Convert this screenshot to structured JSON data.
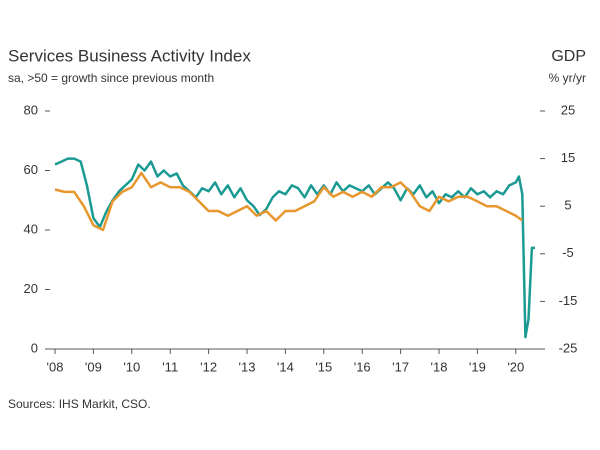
{
  "chart_data": {
    "type": "line",
    "title": "Services Business Activity Index",
    "subtitle": "sa, >50 = growth since previous month",
    "y2label": "% yr/yr",
    "source": "Sources: IHS Markit, CSO.",
    "xlim": [
      2007.87,
      2020.63
    ],
    "xticks": [
      {
        "value": 2008,
        "label": "'08"
      },
      {
        "value": 2009,
        "label": "'09"
      },
      {
        "value": 2010,
        "label": "'10"
      },
      {
        "value": 2011,
        "label": "'11"
      },
      {
        "value": 2012,
        "label": "'12"
      },
      {
        "value": 2013,
        "label": "'13"
      },
      {
        "value": 2014,
        "label": "'14"
      },
      {
        "value": 2015,
        "label": "'15"
      },
      {
        "value": 2016,
        "label": "'16"
      },
      {
        "value": 2017,
        "label": "'17"
      },
      {
        "value": 2018,
        "label": "'18"
      },
      {
        "value": 2019,
        "label": "'19"
      },
      {
        "value": 2020,
        "label": "'20"
      }
    ],
    "ylim": [
      0,
      80
    ],
    "yticks": [
      0,
      20,
      40,
      60,
      80
    ],
    "y2lim": [
      -25,
      25
    ],
    "y2ticks": [
      -25,
      -15,
      -5,
      5,
      15,
      25
    ],
    "series": [
      {
        "color": "#1a9a93",
        "x": [
          2008.0,
          2008.17,
          2008.33,
          2008.5,
          2008.67,
          2008.83,
          2009.0,
          2009.17,
          2009.33,
          2009.5,
          2009.67,
          2009.83,
          2010.0,
          2010.17,
          2010.33,
          2010.5,
          2010.67,
          2010.83,
          2011.0,
          2011.17,
          2011.33,
          2011.5,
          2011.67,
          2011.83,
          2012.0,
          2012.17,
          2012.33,
          2012.5,
          2012.67,
          2012.83,
          2013.0,
          2013.17,
          2013.33,
          2013.5,
          2013.67,
          2013.83,
          2014.0,
          2014.17,
          2014.33,
          2014.5,
          2014.67,
          2014.83,
          2015.0,
          2015.17,
          2015.33,
          2015.5,
          2015.67,
          2015.83,
          2016.0,
          2016.17,
          2016.33,
          2016.5,
          2016.67,
          2016.83,
          2017.0,
          2017.17,
          2017.33,
          2017.5,
          2017.67,
          2017.83,
          2018.0,
          2018.17,
          2018.33,
          2018.5,
          2018.67,
          2018.83,
          2019.0,
          2019.17,
          2019.33,
          2019.5,
          2019.67,
          2019.83,
          2020.0,
          2020.08,
          2020.17,
          2020.25,
          2020.33,
          2020.42,
          2020.5
        ],
        "values": [
          62,
          63,
          64,
          64,
          63,
          55,
          44,
          41,
          46,
          50,
          53,
          55,
          57,
          62,
          60,
          63,
          58,
          60,
          58,
          59,
          55,
          53,
          51,
          54,
          53,
          56,
          52,
          55,
          51,
          54,
          50,
          48,
          45,
          47,
          51,
          53,
          52,
          55,
          54,
          51,
          55,
          52,
          55,
          52,
          56,
          53,
          55,
          54,
          53,
          55,
          52,
          54,
          56,
          54,
          50,
          54,
          52,
          55,
          51,
          53,
          49,
          52,
          51,
          53,
          51,
          54,
          52,
          53,
          51,
          53,
          52,
          55,
          56,
          58,
          52,
          4,
          10,
          34,
          34
        ]
      },
      {
        "name": "GDP",
        "color": "#e8962e",
        "axis": "y2",
        "x": [
          2008.0,
          2008.25,
          2008.5,
          2008.75,
          2009.0,
          2009.25,
          2009.5,
          2009.75,
          2010.0,
          2010.25,
          2010.5,
          2010.75,
          2011.0,
          2011.25,
          2011.5,
          2011.75,
          2012.0,
          2012.25,
          2012.5,
          2012.75,
          2013.0,
          2013.25,
          2013.5,
          2013.75,
          2014.0,
          2014.25,
          2014.5,
          2014.75,
          2015.0,
          2015.25,
          2015.5,
          2015.75,
          2016.0,
          2016.25,
          2016.5,
          2016.75,
          2017.0,
          2017.25,
          2017.5,
          2017.75,
          2018.0,
          2018.25,
          2018.5,
          2018.75,
          2019.0,
          2019.25,
          2019.5,
          2019.75,
          2020.0,
          2020.17
        ],
        "values": [
          8.5,
          8,
          8,
          5,
          1,
          0,
          6,
          8,
          9,
          12,
          9,
          10,
          9,
          9,
          8,
          6,
          4,
          4,
          3,
          4,
          5,
          3,
          4,
          2,
          4,
          4,
          5,
          6,
          9,
          7,
          8,
          7,
          8,
          7,
          9,
          9,
          10,
          8,
          5,
          4,
          7,
          6,
          7,
          7,
          6,
          5,
          5,
          4,
          3,
          2
        ]
      }
    ]
  }
}
